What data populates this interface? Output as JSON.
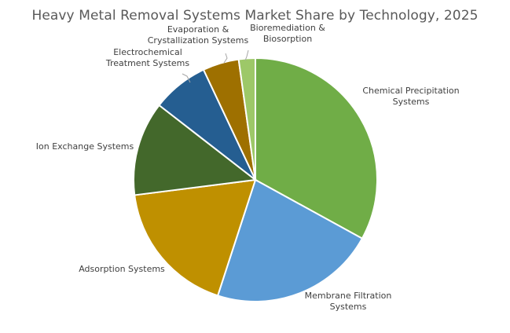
{
  "chart_data": {
    "type": "pie",
    "title": "Heavy Metal Removal Systems Market Share by Technology, 2025",
    "legend": "none",
    "categories": [
      "Chemical Precipitation Systems",
      "Membrane Filtration Systems",
      "Adsorption Systems",
      "Ion Exchange Systems",
      "Electrochemical Treatment Systems",
      "Evaporation & Crystallization Systems",
      "Bioremediation & Biosorption"
    ],
    "values": [
      33,
      22,
      18,
      12.5,
      7.5,
      4.8,
      2.2
    ],
    "label_lines": [
      [
        "Chemical Precipitation",
        "Systems"
      ],
      [
        "Membrane Filtration",
        "Systems"
      ],
      [
        "Adsorption Systems"
      ],
      [
        "Ion Exchange Systems"
      ],
      [
        "Electrochemical",
        "Treatment Systems"
      ],
      [
        "Evaporation &",
        "Crystallization Systems"
      ],
      [
        "Bioremediation &",
        "Biosorption"
      ]
    ],
    "colors": [
      "#70ad47",
      "#5b9bd5",
      "#bf9000",
      "#43682b",
      "#255e91",
      "#9e7000",
      "#9dc868"
    ],
    "start_angle_deg": 0,
    "direction": "clockwise"
  }
}
